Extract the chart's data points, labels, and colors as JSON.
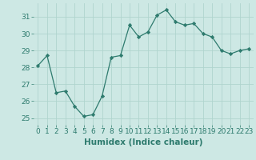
{
  "x": [
    0,
    1,
    2,
    3,
    4,
    5,
    6,
    7,
    8,
    9,
    10,
    11,
    12,
    13,
    14,
    15,
    16,
    17,
    18,
    19,
    20,
    21,
    22,
    23
  ],
  "y": [
    28.1,
    28.7,
    26.5,
    26.6,
    25.7,
    25.1,
    25.2,
    26.3,
    28.6,
    28.7,
    30.5,
    29.8,
    30.1,
    31.1,
    31.4,
    30.7,
    30.5,
    30.6,
    30.0,
    29.8,
    29.0,
    28.8,
    29.0,
    29.1
  ],
  "xlabel": "Humidex (Indice chaleur)",
  "bg_color": "#cde8e4",
  "line_color": "#2e7b6e",
  "marker_color": "#2e7b6e",
  "grid_color": "#b0d4ce",
  "ylim": [
    24.6,
    31.8
  ],
  "xlim": [
    -0.5,
    23.5
  ],
  "yticks": [
    25,
    26,
    27,
    28,
    29,
    30,
    31
  ],
  "xticks": [
    0,
    1,
    2,
    3,
    4,
    5,
    6,
    7,
    8,
    9,
    10,
    11,
    12,
    13,
    14,
    15,
    16,
    17,
    18,
    19,
    20,
    21,
    22,
    23
  ],
  "xlabel_fontsize": 7.5,
  "tick_fontsize": 6.5
}
